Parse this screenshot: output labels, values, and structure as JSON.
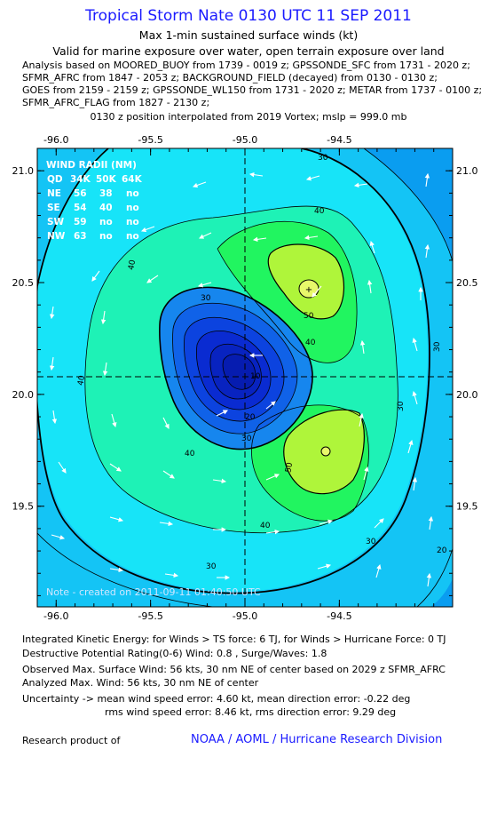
{
  "header": {
    "title": "Tropical Storm Nate 0130 UTC 11 SEP 2011",
    "subtitle1": "Max 1-min sustained surface winds (kt)",
    "subtitle2": "Valid for marine exposure over water, open terrain exposure over land",
    "analysis_lines": [
      "Analysis based on MOORED_BUOY from 1739 - 0019 z; GPSSONDE_SFC from 1731 - 2020 z;",
      "SFMR_AFRC from 1847 - 2053 z; BACKGROUND_FIELD (decayed) from 0130 - 0130 z;",
      "GOES from 2159 - 2159 z; GPSSONDE_WL150 from 1731 - 2020 z; METAR from 1737 - 0100 z;",
      "SFMR_AFRC_FLAG from 1827 - 2130 z;"
    ],
    "position_note": "0130 z position interpolated from 2019 Vortex; mslp = 999.0 mb"
  },
  "map": {
    "lon_ticks": [
      "-96.0",
      "-95.5",
      "-95.0",
      "-94.5"
    ],
    "lat_ticks": [
      "21.0",
      "20.5",
      "20.0",
      "19.5"
    ],
    "x_range": [
      -96.1,
      -93.9
    ],
    "y_range": [
      19.05,
      21.1
    ],
    "center": {
      "lon": -95.05,
      "lat": 20.08
    },
    "contour_labels": [
      "10",
      "20",
      "30",
      "30",
      "30",
      "30",
      "30",
      "40",
      "40",
      "40",
      "40",
      "40",
      "40",
      "50",
      "50",
      "20",
      "30"
    ],
    "wind_radii": {
      "title": "WIND RADII (NM)",
      "header": [
        "QD",
        "34K",
        "50K",
        "64K"
      ],
      "rows": [
        [
          "NE",
          "56",
          "38",
          "no"
        ],
        [
          "SE",
          "54",
          "40",
          "no"
        ],
        [
          "SW",
          "59",
          "no",
          "no"
        ],
        [
          "NW",
          "63",
          "no",
          "no"
        ]
      ]
    },
    "note": "Note - created on 2011-09-11 01:40:50 UTC",
    "colors": {
      "outer": "#0a9df0",
      "c20": "#14c4f5",
      "c30": "#17e4f8",
      "c40": "#1ef2b6",
      "c50": "#21f560",
      "max": "#aff53a",
      "core1": "#1686ee",
      "core2": "#1062e8",
      "core3": "#0c43df",
      "core4": "#0a2bd1"
    }
  },
  "footer": {
    "ike": "Integrated Kinetic Energy:  for Winds > TS force: 6 TJ,  for Winds > Hurricane Force: 0 TJ",
    "dpr": "Destructive Potential Rating(0-6)   Wind: 0.8 , Surge/Waves: 1.8",
    "obs_max": "Observed Max. Surface Wind: 56 kts, 30 nm NE of center based on 2029 z SFMR_AFRC",
    "ana_max": "Analyzed Max. Wind: 56 kts, 30 nm NE of center",
    "unc1": "Uncertainty -> mean wind speed error: 4.60 kt,   mean direction error:  -0.22 deg",
    "unc2": "rms wind speed error: 8.46 kt,   rms direction error: 9.29 deg",
    "research": "Research product of",
    "org": "NOAA / AOML / Hurricane Research Division"
  }
}
